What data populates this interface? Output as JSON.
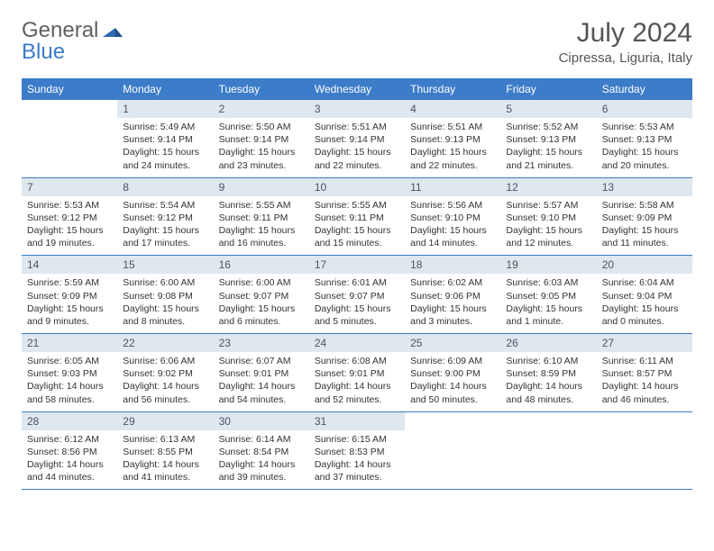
{
  "brand": {
    "part1": "General",
    "part2": "Blue"
  },
  "title": "July 2024",
  "location": "Cipressa, Liguria, Italy",
  "colors": {
    "header_bg": "#3d7cc9",
    "daynum_bg": "#dfe7ef",
    "text": "#333333",
    "title_text": "#555555",
    "border": "#3d7cc9"
  },
  "weekdays": [
    "Sunday",
    "Monday",
    "Tuesday",
    "Wednesday",
    "Thursday",
    "Friday",
    "Saturday"
  ],
  "weeks": [
    [
      null,
      {
        "d": "1",
        "sr": "Sunrise: 5:49 AM",
        "ss": "Sunset: 9:14 PM",
        "dl1": "Daylight: 15 hours",
        "dl2": "and 24 minutes."
      },
      {
        "d": "2",
        "sr": "Sunrise: 5:50 AM",
        "ss": "Sunset: 9:14 PM",
        "dl1": "Daylight: 15 hours",
        "dl2": "and 23 minutes."
      },
      {
        "d": "3",
        "sr": "Sunrise: 5:51 AM",
        "ss": "Sunset: 9:14 PM",
        "dl1": "Daylight: 15 hours",
        "dl2": "and 22 minutes."
      },
      {
        "d": "4",
        "sr": "Sunrise: 5:51 AM",
        "ss": "Sunset: 9:13 PM",
        "dl1": "Daylight: 15 hours",
        "dl2": "and 22 minutes."
      },
      {
        "d": "5",
        "sr": "Sunrise: 5:52 AM",
        "ss": "Sunset: 9:13 PM",
        "dl1": "Daylight: 15 hours",
        "dl2": "and 21 minutes."
      },
      {
        "d": "6",
        "sr": "Sunrise: 5:53 AM",
        "ss": "Sunset: 9:13 PM",
        "dl1": "Daylight: 15 hours",
        "dl2": "and 20 minutes."
      }
    ],
    [
      {
        "d": "7",
        "sr": "Sunrise: 5:53 AM",
        "ss": "Sunset: 9:12 PM",
        "dl1": "Daylight: 15 hours",
        "dl2": "and 19 minutes."
      },
      {
        "d": "8",
        "sr": "Sunrise: 5:54 AM",
        "ss": "Sunset: 9:12 PM",
        "dl1": "Daylight: 15 hours",
        "dl2": "and 17 minutes."
      },
      {
        "d": "9",
        "sr": "Sunrise: 5:55 AM",
        "ss": "Sunset: 9:11 PM",
        "dl1": "Daylight: 15 hours",
        "dl2": "and 16 minutes."
      },
      {
        "d": "10",
        "sr": "Sunrise: 5:55 AM",
        "ss": "Sunset: 9:11 PM",
        "dl1": "Daylight: 15 hours",
        "dl2": "and 15 minutes."
      },
      {
        "d": "11",
        "sr": "Sunrise: 5:56 AM",
        "ss": "Sunset: 9:10 PM",
        "dl1": "Daylight: 15 hours",
        "dl2": "and 14 minutes."
      },
      {
        "d": "12",
        "sr": "Sunrise: 5:57 AM",
        "ss": "Sunset: 9:10 PM",
        "dl1": "Daylight: 15 hours",
        "dl2": "and 12 minutes."
      },
      {
        "d": "13",
        "sr": "Sunrise: 5:58 AM",
        "ss": "Sunset: 9:09 PM",
        "dl1": "Daylight: 15 hours",
        "dl2": "and 11 minutes."
      }
    ],
    [
      {
        "d": "14",
        "sr": "Sunrise: 5:59 AM",
        "ss": "Sunset: 9:09 PM",
        "dl1": "Daylight: 15 hours",
        "dl2": "and 9 minutes."
      },
      {
        "d": "15",
        "sr": "Sunrise: 6:00 AM",
        "ss": "Sunset: 9:08 PM",
        "dl1": "Daylight: 15 hours",
        "dl2": "and 8 minutes."
      },
      {
        "d": "16",
        "sr": "Sunrise: 6:00 AM",
        "ss": "Sunset: 9:07 PM",
        "dl1": "Daylight: 15 hours",
        "dl2": "and 6 minutes."
      },
      {
        "d": "17",
        "sr": "Sunrise: 6:01 AM",
        "ss": "Sunset: 9:07 PM",
        "dl1": "Daylight: 15 hours",
        "dl2": "and 5 minutes."
      },
      {
        "d": "18",
        "sr": "Sunrise: 6:02 AM",
        "ss": "Sunset: 9:06 PM",
        "dl1": "Daylight: 15 hours",
        "dl2": "and 3 minutes."
      },
      {
        "d": "19",
        "sr": "Sunrise: 6:03 AM",
        "ss": "Sunset: 9:05 PM",
        "dl1": "Daylight: 15 hours",
        "dl2": "and 1 minute."
      },
      {
        "d": "20",
        "sr": "Sunrise: 6:04 AM",
        "ss": "Sunset: 9:04 PM",
        "dl1": "Daylight: 15 hours",
        "dl2": "and 0 minutes."
      }
    ],
    [
      {
        "d": "21",
        "sr": "Sunrise: 6:05 AM",
        "ss": "Sunset: 9:03 PM",
        "dl1": "Daylight: 14 hours",
        "dl2": "and 58 minutes."
      },
      {
        "d": "22",
        "sr": "Sunrise: 6:06 AM",
        "ss": "Sunset: 9:02 PM",
        "dl1": "Daylight: 14 hours",
        "dl2": "and 56 minutes."
      },
      {
        "d": "23",
        "sr": "Sunrise: 6:07 AM",
        "ss": "Sunset: 9:01 PM",
        "dl1": "Daylight: 14 hours",
        "dl2": "and 54 minutes."
      },
      {
        "d": "24",
        "sr": "Sunrise: 6:08 AM",
        "ss": "Sunset: 9:01 PM",
        "dl1": "Daylight: 14 hours",
        "dl2": "and 52 minutes."
      },
      {
        "d": "25",
        "sr": "Sunrise: 6:09 AM",
        "ss": "Sunset: 9:00 PM",
        "dl1": "Daylight: 14 hours",
        "dl2": "and 50 minutes."
      },
      {
        "d": "26",
        "sr": "Sunrise: 6:10 AM",
        "ss": "Sunset: 8:59 PM",
        "dl1": "Daylight: 14 hours",
        "dl2": "and 48 minutes."
      },
      {
        "d": "27",
        "sr": "Sunrise: 6:11 AM",
        "ss": "Sunset: 8:57 PM",
        "dl1": "Daylight: 14 hours",
        "dl2": "and 46 minutes."
      }
    ],
    [
      {
        "d": "28",
        "sr": "Sunrise: 6:12 AM",
        "ss": "Sunset: 8:56 PM",
        "dl1": "Daylight: 14 hours",
        "dl2": "and 44 minutes."
      },
      {
        "d": "29",
        "sr": "Sunrise: 6:13 AM",
        "ss": "Sunset: 8:55 PM",
        "dl1": "Daylight: 14 hours",
        "dl2": "and 41 minutes."
      },
      {
        "d": "30",
        "sr": "Sunrise: 6:14 AM",
        "ss": "Sunset: 8:54 PM",
        "dl1": "Daylight: 14 hours",
        "dl2": "and 39 minutes."
      },
      {
        "d": "31",
        "sr": "Sunrise: 6:15 AM",
        "ss": "Sunset: 8:53 PM",
        "dl1": "Daylight: 14 hours",
        "dl2": "and 37 minutes."
      },
      null,
      null,
      null
    ]
  ]
}
